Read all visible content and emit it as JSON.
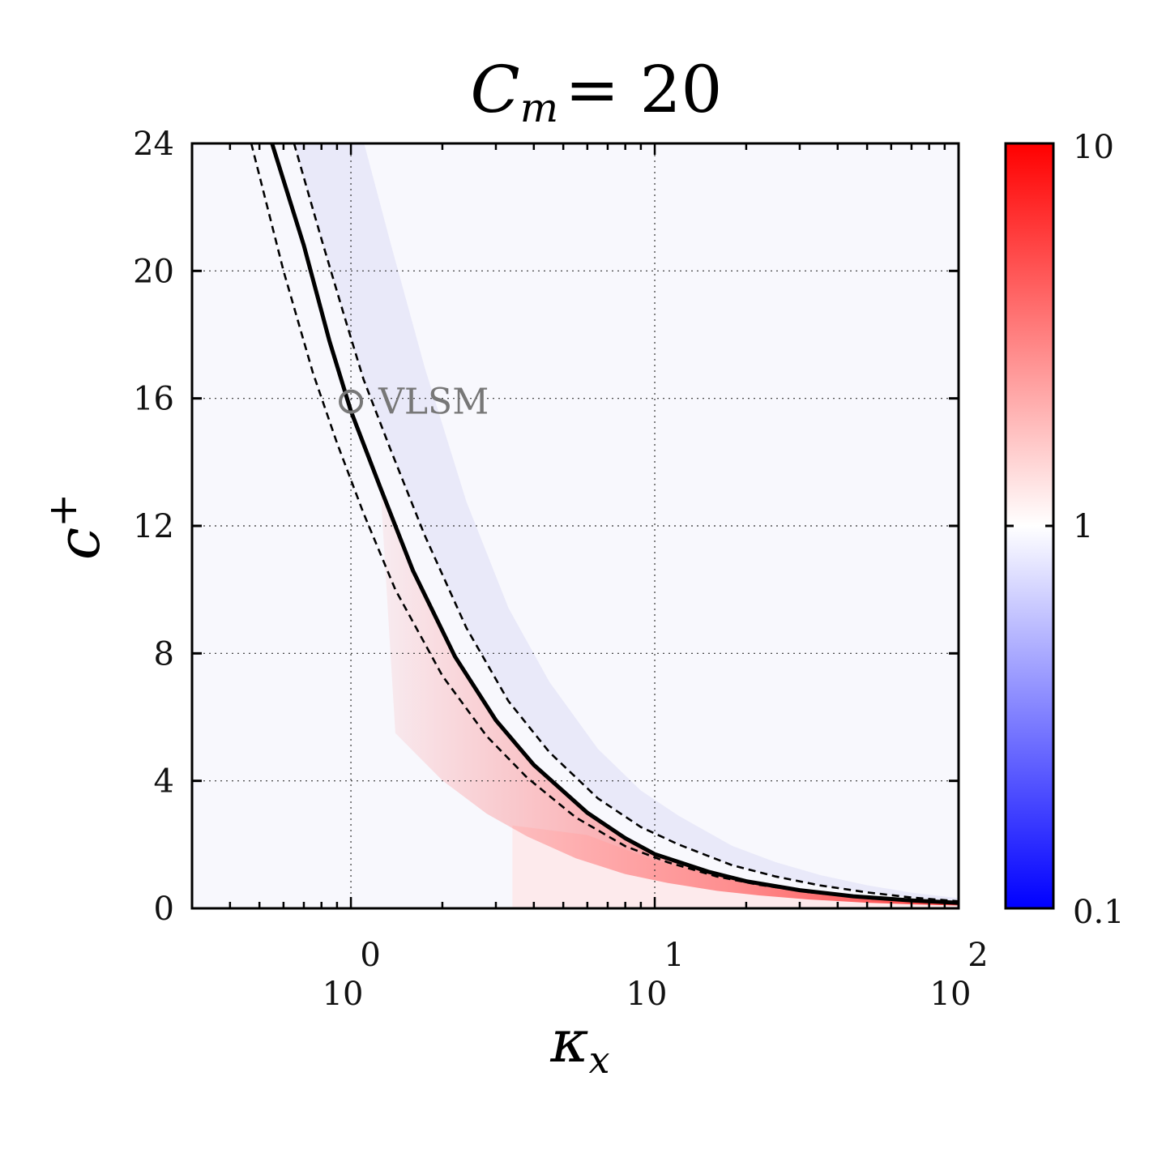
{
  "chart_data": {
    "type": "heatmap",
    "title": {
      "base": "C",
      "sub": "m",
      "rest": "= 20"
    },
    "xlabel": {
      "base": "κ",
      "sub": "x"
    },
    "ylabel": {
      "base": "c",
      "sup": "+"
    },
    "x_scale": "log",
    "xlim": [
      0.3,
      100
    ],
    "ylim": [
      0,
      24
    ],
    "x_ticks": [
      {
        "value": 1,
        "base": "10",
        "exp": "0"
      },
      {
        "value": 10,
        "base": "10",
        "exp": "1"
      },
      {
        "value": 100,
        "base": "10",
        "exp": "2"
      }
    ],
    "y_ticks": [
      {
        "value": 0,
        "label": "0"
      },
      {
        "value": 4,
        "label": "4"
      },
      {
        "value": 8,
        "label": "8"
      },
      {
        "value": 12,
        "label": "12"
      },
      {
        "value": 16,
        "label": "16"
      },
      {
        "value": 20,
        "label": "20"
      },
      {
        "value": 24,
        "label": "24"
      }
    ],
    "grid": true,
    "colorbar": {
      "scale": "log",
      "range": [
        0.1,
        10
      ],
      "ticks": [
        {
          "value": 10,
          "label": "10"
        },
        {
          "value": 1,
          "label": "1"
        },
        {
          "value": 0.1,
          "label": "0.1"
        }
      ],
      "colors": {
        "low": "#0000ff",
        "mid": "#ffffff",
        "high": "#ff0000"
      }
    },
    "curves": [
      {
        "style": "solid",
        "points": [
          [
            0.55,
            24
          ],
          [
            0.7,
            20.8
          ],
          [
            0.85,
            17.8
          ],
          [
            1.0,
            15.6
          ],
          [
            1.25,
            13.2
          ],
          [
            1.6,
            10.6
          ],
          [
            2.2,
            7.9
          ],
          [
            3.0,
            5.9
          ],
          [
            4.0,
            4.5
          ],
          [
            6.0,
            3.0
          ],
          [
            8.0,
            2.2
          ],
          [
            10.0,
            1.7
          ],
          [
            15.0,
            1.15
          ],
          [
            20.0,
            0.85
          ],
          [
            30.0,
            0.57
          ],
          [
            45.0,
            0.38
          ],
          [
            70.0,
            0.25
          ],
          [
            100.0,
            0.17
          ]
        ]
      },
      {
        "style": "dashed",
        "points": [
          [
            0.47,
            24
          ],
          [
            0.6,
            20.0
          ],
          [
            0.75,
            16.8
          ],
          [
            0.9,
            14.6
          ],
          [
            1.1,
            12.4
          ],
          [
            1.4,
            10.0
          ],
          [
            2.0,
            7.3
          ],
          [
            2.8,
            5.4
          ],
          [
            3.8,
            4.1
          ],
          [
            5.5,
            2.85
          ],
          [
            8.0,
            1.95
          ],
          [
            11.0,
            1.45
          ],
          [
            16.0,
            1.0
          ],
          [
            22.0,
            0.74
          ],
          [
            32.0,
            0.51
          ],
          [
            50.0,
            0.32
          ],
          [
            70.0,
            0.23
          ],
          [
            100.0,
            0.16
          ]
        ]
      },
      {
        "style": "dashed",
        "points": [
          [
            0.65,
            24
          ],
          [
            0.8,
            21.0
          ],
          [
            0.95,
            18.6
          ],
          [
            1.1,
            16.6
          ],
          [
            1.35,
            14.4
          ],
          [
            1.75,
            11.7
          ],
          [
            2.4,
            8.8
          ],
          [
            3.3,
            6.5
          ],
          [
            4.5,
            4.9
          ],
          [
            6.5,
            3.45
          ],
          [
            9.0,
            2.55
          ],
          [
            12.0,
            2.0
          ],
          [
            18.0,
            1.35
          ],
          [
            25.0,
            1.0
          ],
          [
            35.0,
            0.72
          ],
          [
            50.0,
            0.5
          ],
          [
            70.0,
            0.34
          ],
          [
            100.0,
            0.22
          ]
        ]
      }
    ],
    "annotations": [
      {
        "text": "VLSM",
        "x": 1.0,
        "y": 15.9,
        "marker": "circle",
        "color": "#777777"
      }
    ]
  }
}
